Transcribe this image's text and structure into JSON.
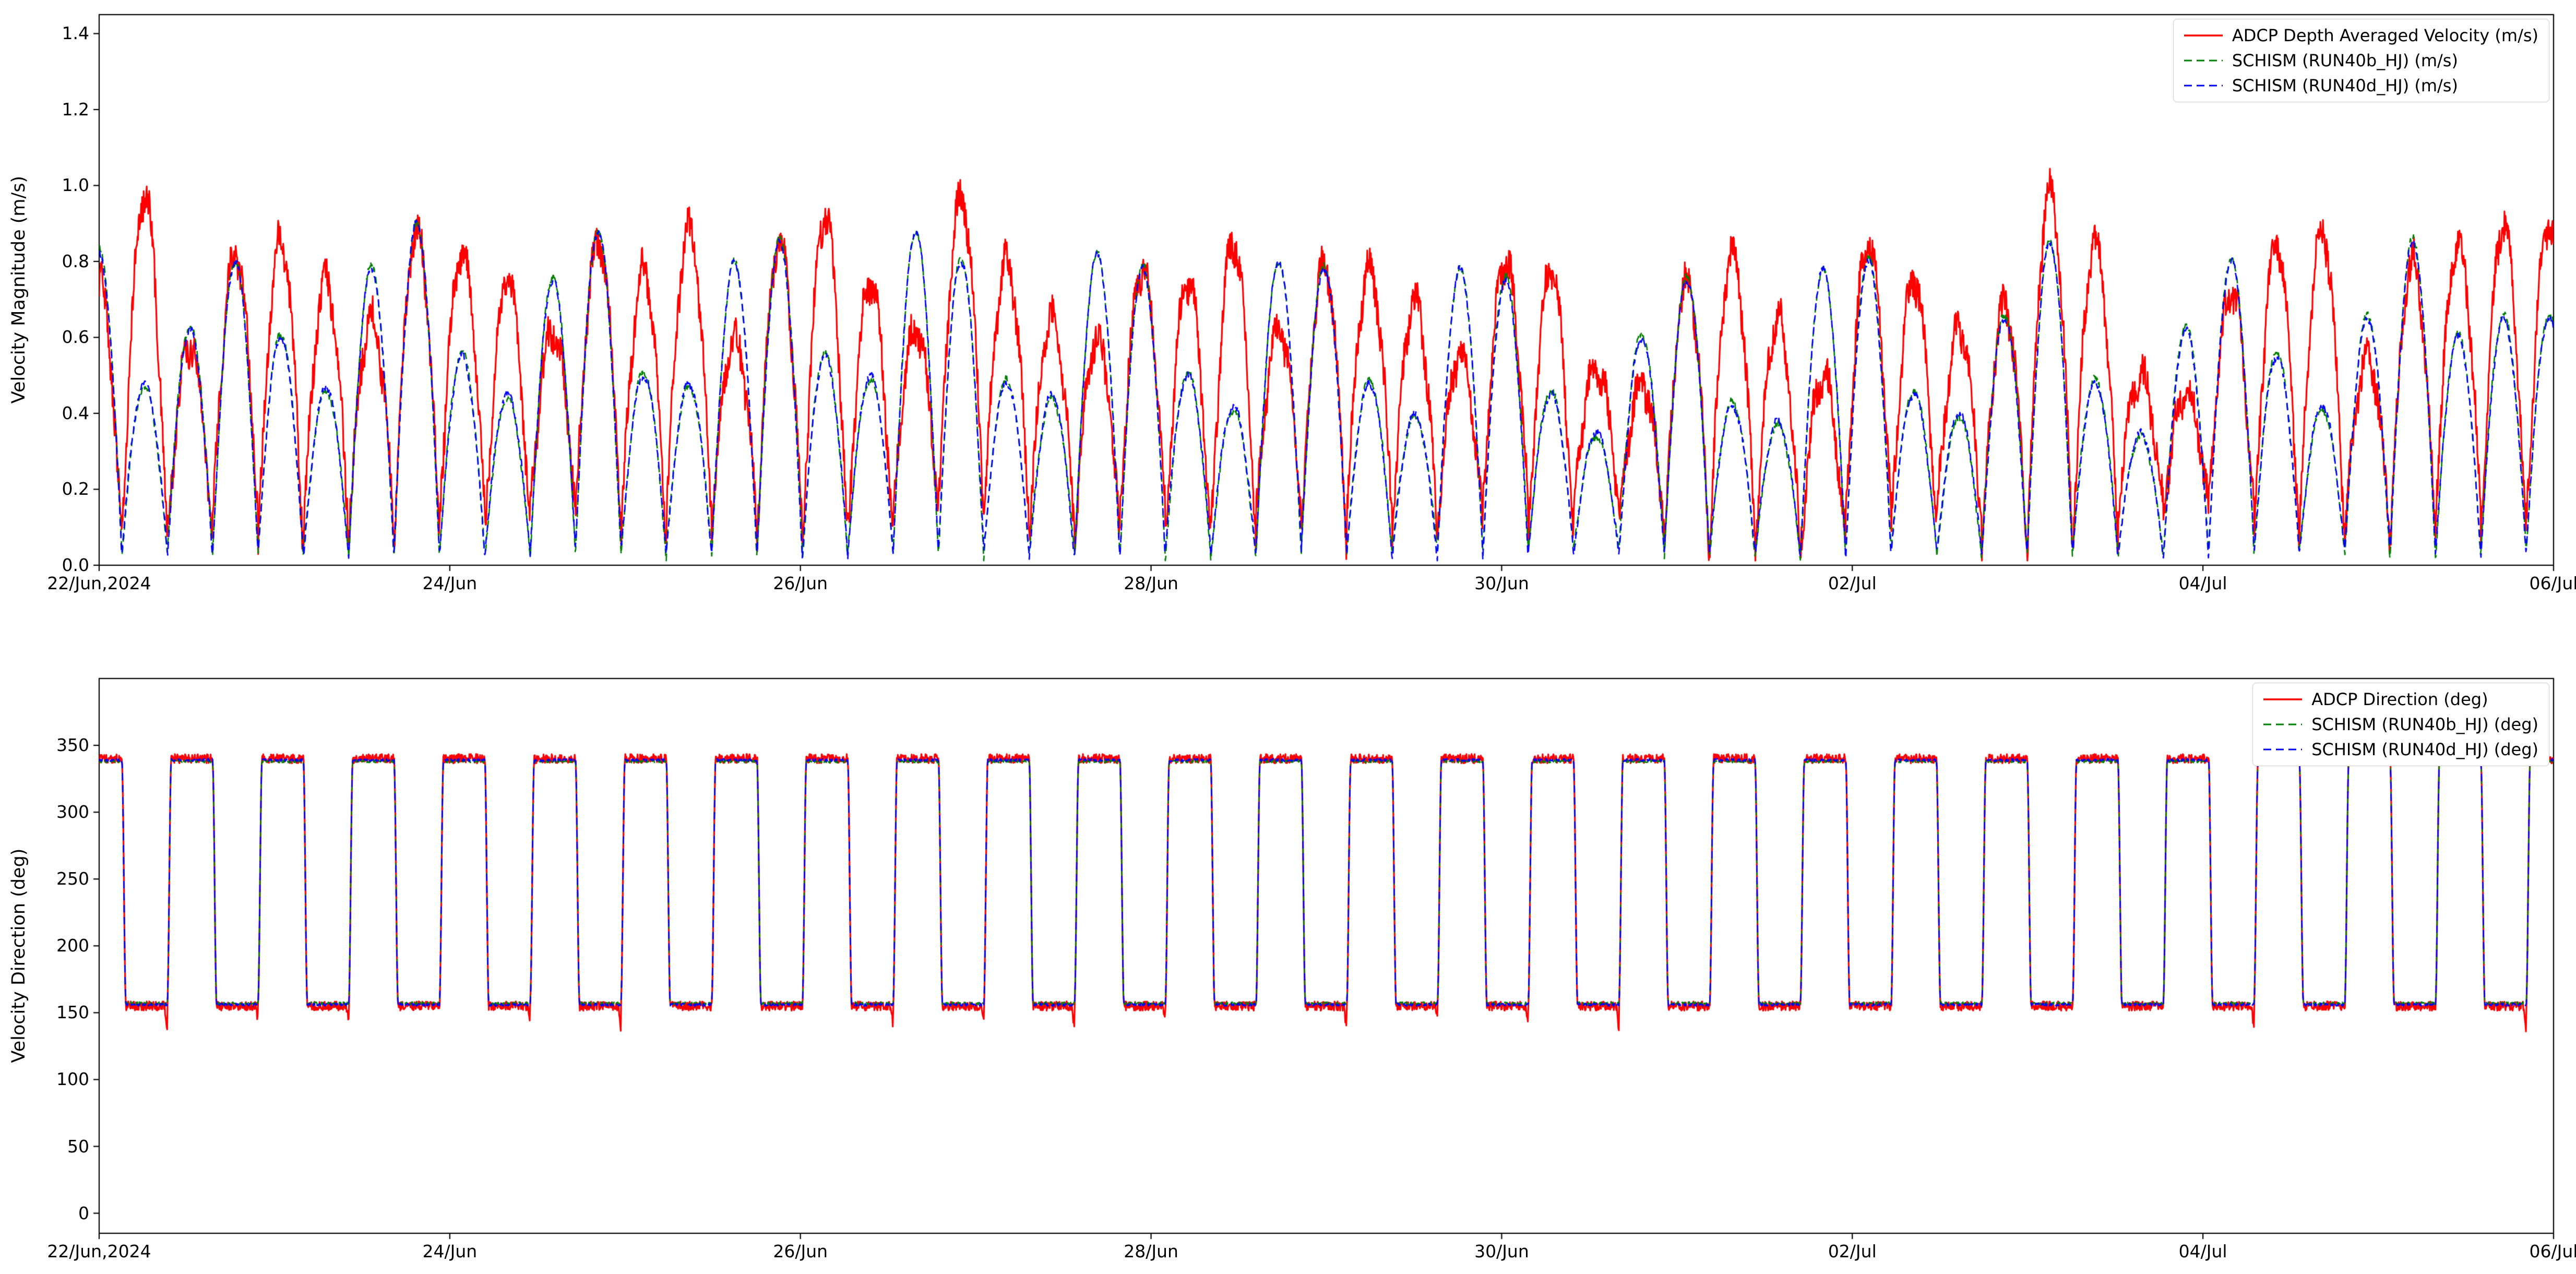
{
  "figure": {
    "background": "#ffffff",
    "spine_color": "#000000",
    "text_color": "#000000"
  },
  "chart_data": [
    {
      "type": "line",
      "title": "",
      "xlabel": "",
      "ylabel": "Velocity Magnitude (m/s)",
      "x_range_days": [
        0,
        14
      ],
      "x_tick_days": [
        0,
        2,
        4,
        6,
        8,
        10,
        12,
        14
      ],
      "x_tick_labels": [
        "22/Jun,2024",
        "24/Jun",
        "26/Jun",
        "28/Jun",
        "30/Jun",
        "02/Jul",
        "04/Jul",
        "06/Jul"
      ],
      "y_ticks": [
        0.0,
        0.2,
        0.4,
        0.6,
        0.8,
        1.0,
        1.2,
        1.4
      ],
      "y_tick_labels": [
        "0.0",
        "0.2",
        "0.4",
        "0.6",
        "0.8",
        "1.0",
        "1.2",
        "1.4"
      ],
      "ylim": [
        0,
        1.45
      ],
      "grid": false,
      "legend_position": "upper right",
      "signal": {
        "kind": "tidal_magnitude",
        "half_period_hours": 6.2103,
        "start_offset_hours": -3.1,
        "total_hours": 336
      },
      "series": [
        {
          "name": "ADCP Depth Averaged Velocity (m/s)",
          "color": "#ff0000",
          "dash": "solid",
          "floor": 0.07,
          "noise": 0.042,
          "peak_amps": [
            0.75,
            0.97,
            0.58,
            0.82,
            0.86,
            0.75,
            0.65,
            0.88,
            0.82,
            0.75,
            0.62,
            0.85,
            0.78,
            0.88,
            0.6,
            0.85,
            0.92,
            0.75,
            0.62,
            0.97,
            0.8,
            0.65,
            0.6,
            0.78,
            0.75,
            0.85,
            0.62,
            0.8,
            0.78,
            0.7,
            0.55,
            0.8,
            0.78,
            0.52,
            0.48,
            0.75,
            0.82,
            0.65,
            0.5,
            0.85,
            0.75,
            0.62,
            0.68,
            0.98,
            0.85,
            0.5,
            0.45,
            0.72,
            0.85,
            0.88,
            0.55,
            0.8,
            0.85,
            0.9
          ]
        },
        {
          "name": "SCHISM (RUN40b_HJ) (m/s)",
          "color": "#008000",
          "dash": "dashed",
          "floor": 0.02,
          "noise": 0.008,
          "peak_amps": [
            0.83,
            0.47,
            0.63,
            0.8,
            0.61,
            0.46,
            0.79,
            0.9,
            0.56,
            0.44,
            0.76,
            0.88,
            0.51,
            0.47,
            0.8,
            0.86,
            0.56,
            0.49,
            0.88,
            0.81,
            0.49,
            0.44,
            0.82,
            0.79,
            0.51,
            0.41,
            0.8,
            0.79,
            0.49,
            0.39,
            0.78,
            0.76,
            0.46,
            0.34,
            0.61,
            0.76,
            0.43,
            0.37,
            0.78,
            0.81,
            0.46,
            0.39,
            0.66,
            0.85,
            0.49,
            0.34,
            0.63,
            0.81,
            0.56,
            0.41,
            0.66,
            0.86,
            0.61,
            0.66
          ]
        },
        {
          "name": "SCHISM (RUN40d_HJ) (m/s)",
          "color": "#0000ff",
          "dash": "dashed",
          "floor": 0.02,
          "noise": 0.008,
          "peak_amps": [
            0.82,
            0.48,
            0.62,
            0.8,
            0.6,
            0.47,
            0.78,
            0.9,
            0.55,
            0.45,
            0.75,
            0.88,
            0.5,
            0.48,
            0.8,
            0.85,
            0.55,
            0.5,
            0.88,
            0.8,
            0.48,
            0.45,
            0.82,
            0.78,
            0.5,
            0.42,
            0.8,
            0.78,
            0.48,
            0.4,
            0.78,
            0.75,
            0.45,
            0.35,
            0.6,
            0.75,
            0.42,
            0.38,
            0.78,
            0.8,
            0.45,
            0.4,
            0.65,
            0.85,
            0.48,
            0.35,
            0.62,
            0.8,
            0.55,
            0.42,
            0.65,
            0.85,
            0.6,
            0.65
          ]
        }
      ]
    },
    {
      "type": "line",
      "title": "",
      "xlabel": "",
      "ylabel": "Velocity Direction (deg)",
      "x_range_days": [
        0,
        14
      ],
      "x_tick_days": [
        0,
        2,
        4,
        6,
        8,
        10,
        12,
        14
      ],
      "x_tick_labels": [
        "22/Jun,2024",
        "24/Jun",
        "26/Jun",
        "28/Jun",
        "30/Jun",
        "02/Jul",
        "04/Jul",
        "06/Jul"
      ],
      "y_ticks": [
        0,
        50,
        100,
        150,
        200,
        250,
        300,
        350
      ],
      "y_tick_labels": [
        "0",
        "50",
        "100",
        "150",
        "200",
        "250",
        "300",
        "350"
      ],
      "ylim": [
        -15,
        400
      ],
      "grid": false,
      "legend_position": "upper right",
      "signal": {
        "kind": "tidal_direction",
        "half_period_hours": 6.2103,
        "start_offset_hours": -3.1,
        "total_hours": 336
      },
      "series": [
        {
          "name": "ADCP Direction (deg)",
          "color": "#ff0000",
          "dash": "solid",
          "high": 340,
          "low": 155,
          "noise": 3.5,
          "spike_depth": 24
        },
        {
          "name": "SCHISM (RUN40b_HJ) (deg)",
          "color": "#008000",
          "dash": "dashed",
          "high": 338,
          "low": 157,
          "noise": 1.0,
          "spike_depth": 0
        },
        {
          "name": "SCHISM (RUN40d_HJ) (deg)",
          "color": "#0000ff",
          "dash": "dashed",
          "high": 339,
          "low": 156,
          "noise": 1.0,
          "spike_depth": 0
        }
      ]
    }
  ]
}
